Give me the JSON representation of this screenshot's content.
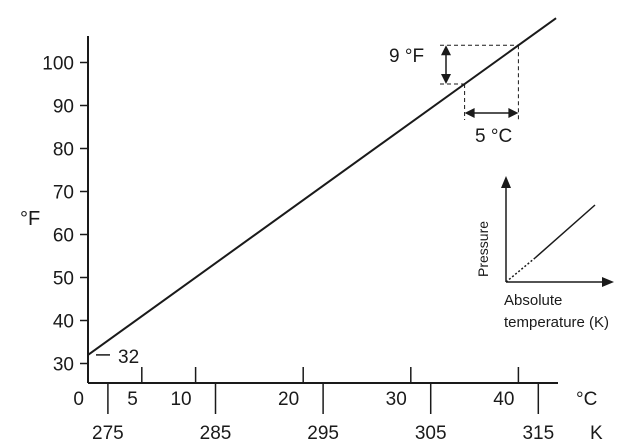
{
  "chart_data": {
    "type": "line",
    "y_axis": {
      "label": "°F",
      "ticks": [
        30,
        40,
        50,
        60,
        70,
        80,
        90,
        100
      ],
      "range": [
        27,
        106
      ]
    },
    "x_axis_celsius": {
      "unit": "°C",
      "ticks": [
        0,
        5,
        10,
        20,
        30,
        40
      ],
      "range": [
        0,
        45
      ]
    },
    "x_axis_kelvin": {
      "unit": "K",
      "ticks": [
        275,
        285,
        295,
        305,
        315
      ]
    },
    "series": [
      {
        "x": [
          0,
          43.5
        ],
        "y": [
          32,
          110.3
        ]
      }
    ],
    "annotations": {
      "intercept_label": "32",
      "fahrenheit_step": "9 °F",
      "celsius_step": "5 °C",
      "step_from_celsius": 35,
      "step_to_celsius": 40
    },
    "inset": {
      "ylabel": "Pressure",
      "xlabel_line1": "Absolute",
      "xlabel_line2": "temperature (K)"
    }
  }
}
